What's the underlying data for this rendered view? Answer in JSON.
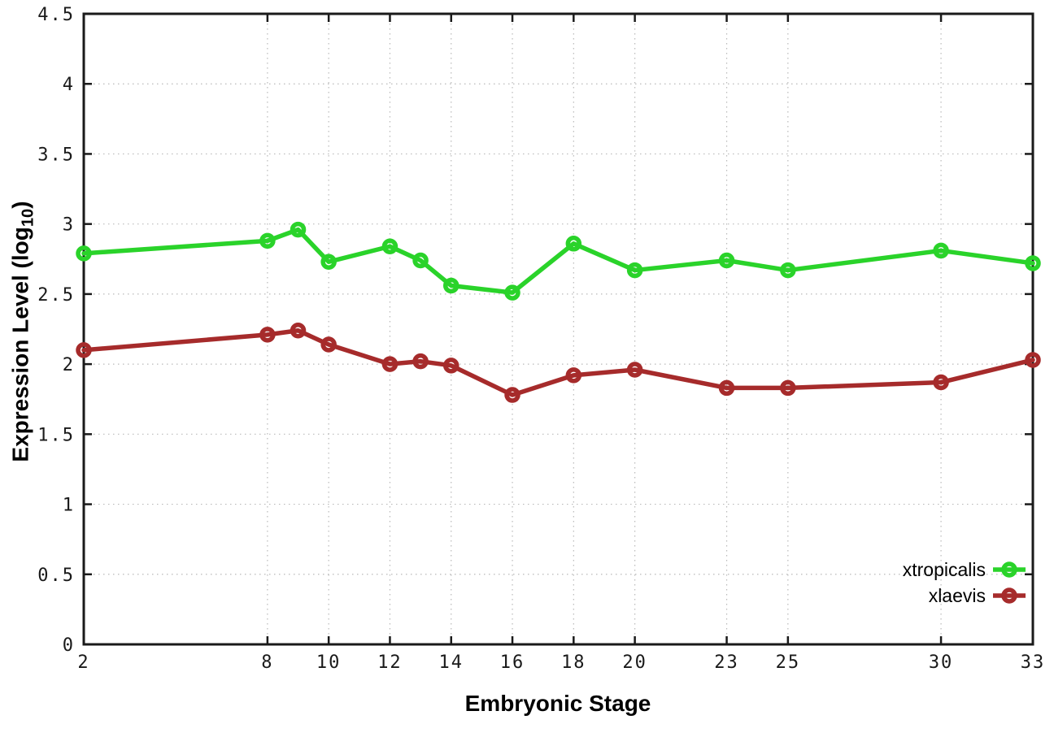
{
  "colors": {
    "border": "#1a1a1a",
    "grid": "#b9b9b9",
    "tick_text": "#1a1a1a",
    "xtropicalis_green": "#2ad32a",
    "xlaevis_red": "#a62b2b"
  },
  "chart_data": {
    "type": "line",
    "title": "",
    "xlabel": "Embryonic Stage",
    "ylabel": "Expression Level (log10)",
    "ylabel_parts": {
      "main": "Expression Level (log",
      "sub": "10",
      "close": ")"
    },
    "xlim": [
      2,
      33
    ],
    "ylim": [
      0,
      4.5
    ],
    "grid": true,
    "legend_position": "bottom-right",
    "x_ticks": [
      {
        "value": 2,
        "label": "2"
      },
      {
        "value": 8,
        "label": "8"
      },
      {
        "value": 10,
        "label": "10"
      },
      {
        "value": 12,
        "label": "12"
      },
      {
        "value": 14,
        "label": "14"
      },
      {
        "value": 16,
        "label": "16"
      },
      {
        "value": 18,
        "label": "18"
      },
      {
        "value": 20,
        "label": "20"
      },
      {
        "value": 23,
        "label": "23"
      },
      {
        "value": 25,
        "label": "25"
      },
      {
        "value": 30,
        "label": "30"
      },
      {
        "value": 33,
        "label": "33"
      }
    ],
    "y_ticks": [
      {
        "value": 0,
        "label": "0"
      },
      {
        "value": 0.5,
        "label": "0.5"
      },
      {
        "value": 1,
        "label": "1"
      },
      {
        "value": 1.5,
        "label": "1.5"
      },
      {
        "value": 2,
        "label": "2"
      },
      {
        "value": 2.5,
        "label": "2.5"
      },
      {
        "value": 3,
        "label": "3"
      },
      {
        "value": 3.5,
        "label": "3.5"
      },
      {
        "value": 4,
        "label": "4"
      },
      {
        "value": 4.5,
        "label": "4.5"
      }
    ],
    "x": [
      2,
      8,
      9,
      10,
      12,
      13,
      14,
      16,
      18,
      20,
      23,
      25,
      30,
      33
    ],
    "series": [
      {
        "name": "xtropicalis",
        "color": "#2ad32a",
        "values": [
          2.79,
          2.88,
          2.96,
          2.73,
          2.84,
          2.74,
          2.56,
          2.51,
          2.86,
          2.67,
          2.74,
          2.67,
          2.81,
          2.72
        ]
      },
      {
        "name": "xlaevis",
        "color": "#a62b2b",
        "values": [
          2.1,
          2.21,
          2.24,
          2.14,
          2.0,
          2.02,
          1.99,
          1.78,
          1.92,
          1.96,
          1.83,
          1.83,
          1.87,
          2.03
        ]
      }
    ]
  }
}
